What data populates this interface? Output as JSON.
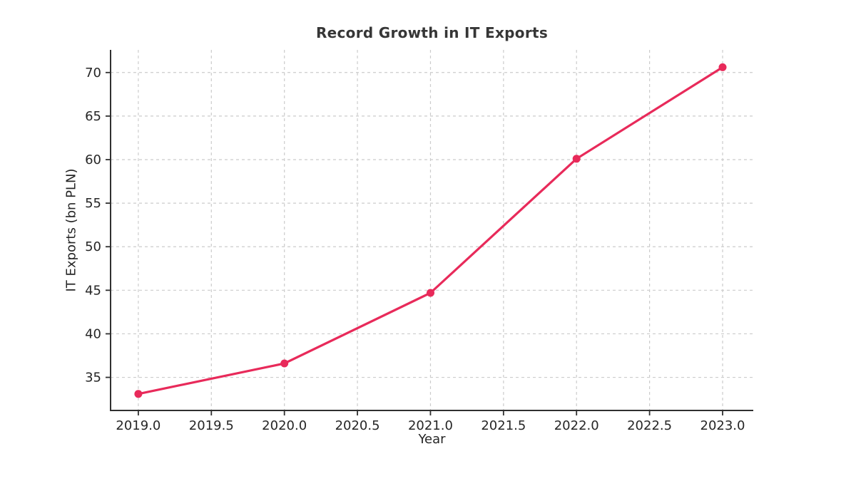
{
  "chart_data": {
    "type": "line",
    "title": "Record Growth in IT Exports",
    "xlabel": "Year",
    "ylabel": "IT Exports (bn PLN)",
    "x": [
      2019,
      2020,
      2021,
      2022,
      2023
    ],
    "values": [
      33.1,
      36.6,
      44.7,
      60.1,
      70.6
    ],
    "xticks": [
      2019.0,
      2019.5,
      2020.0,
      2020.5,
      2021.0,
      2021.5,
      2022.0,
      2022.5,
      2023.0
    ],
    "xtick_labels": [
      "2019.0",
      "2019.5",
      "2020.0",
      "2020.5",
      "2021.0",
      "2021.5",
      "2022.0",
      "2022.5",
      "2023.0"
    ],
    "yticks": [
      35,
      40,
      45,
      50,
      55,
      60,
      65,
      70
    ],
    "ytick_labels": [
      "35",
      "40",
      "45",
      "50",
      "55",
      "60",
      "65",
      "70"
    ],
    "xlim": [
      2018.81,
      2023.21
    ],
    "ylim": [
      31.2,
      72.6
    ],
    "grid": true,
    "grid_style": "dashed",
    "legend_position": "none",
    "marker": "circle",
    "colors": {
      "line": "#e82a5a",
      "grid": "#cccccc",
      "spine": "#303030",
      "tick_label": "#262626",
      "title": "#363636"
    }
  }
}
